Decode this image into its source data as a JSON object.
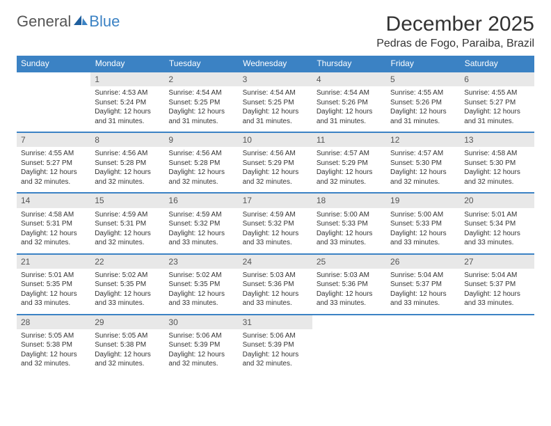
{
  "brand": {
    "part1": "General",
    "part2": "Blue"
  },
  "title": "December 2025",
  "location": "Pedras de Fogo, Paraiba, Brazil",
  "colors": {
    "header_bg": "#3b82c4",
    "header_text": "#ffffff",
    "daynum_bg": "#e8e8e8",
    "row_border": "#3b82c4",
    "text": "#333333",
    "brand_gray": "#555555",
    "brand_blue": "#3b82c4",
    "background": "#ffffff"
  },
  "typography": {
    "title_fontsize": 30,
    "location_fontsize": 16,
    "dayheader_fontsize": 12,
    "daynum_fontsize": 12,
    "body_fontsize": 10
  },
  "weekdays": [
    "Sunday",
    "Monday",
    "Tuesday",
    "Wednesday",
    "Thursday",
    "Friday",
    "Saturday"
  ],
  "weeks": [
    [
      null,
      {
        "n": "1",
        "sr": "4:53 AM",
        "ss": "5:24 PM",
        "dl": "12 hours and 31 minutes."
      },
      {
        "n": "2",
        "sr": "4:54 AM",
        "ss": "5:25 PM",
        "dl": "12 hours and 31 minutes."
      },
      {
        "n": "3",
        "sr": "4:54 AM",
        "ss": "5:25 PM",
        "dl": "12 hours and 31 minutes."
      },
      {
        "n": "4",
        "sr": "4:54 AM",
        "ss": "5:26 PM",
        "dl": "12 hours and 31 minutes."
      },
      {
        "n": "5",
        "sr": "4:55 AM",
        "ss": "5:26 PM",
        "dl": "12 hours and 31 minutes."
      },
      {
        "n": "6",
        "sr": "4:55 AM",
        "ss": "5:27 PM",
        "dl": "12 hours and 31 minutes."
      }
    ],
    [
      {
        "n": "7",
        "sr": "4:55 AM",
        "ss": "5:27 PM",
        "dl": "12 hours and 32 minutes."
      },
      {
        "n": "8",
        "sr": "4:56 AM",
        "ss": "5:28 PM",
        "dl": "12 hours and 32 minutes."
      },
      {
        "n": "9",
        "sr": "4:56 AM",
        "ss": "5:28 PM",
        "dl": "12 hours and 32 minutes."
      },
      {
        "n": "10",
        "sr": "4:56 AM",
        "ss": "5:29 PM",
        "dl": "12 hours and 32 minutes."
      },
      {
        "n": "11",
        "sr": "4:57 AM",
        "ss": "5:29 PM",
        "dl": "12 hours and 32 minutes."
      },
      {
        "n": "12",
        "sr": "4:57 AM",
        "ss": "5:30 PM",
        "dl": "12 hours and 32 minutes."
      },
      {
        "n": "13",
        "sr": "4:58 AM",
        "ss": "5:30 PM",
        "dl": "12 hours and 32 minutes."
      }
    ],
    [
      {
        "n": "14",
        "sr": "4:58 AM",
        "ss": "5:31 PM",
        "dl": "12 hours and 32 minutes."
      },
      {
        "n": "15",
        "sr": "4:59 AM",
        "ss": "5:31 PM",
        "dl": "12 hours and 32 minutes."
      },
      {
        "n": "16",
        "sr": "4:59 AM",
        "ss": "5:32 PM",
        "dl": "12 hours and 33 minutes."
      },
      {
        "n": "17",
        "sr": "4:59 AM",
        "ss": "5:32 PM",
        "dl": "12 hours and 33 minutes."
      },
      {
        "n": "18",
        "sr": "5:00 AM",
        "ss": "5:33 PM",
        "dl": "12 hours and 33 minutes."
      },
      {
        "n": "19",
        "sr": "5:00 AM",
        "ss": "5:33 PM",
        "dl": "12 hours and 33 minutes."
      },
      {
        "n": "20",
        "sr": "5:01 AM",
        "ss": "5:34 PM",
        "dl": "12 hours and 33 minutes."
      }
    ],
    [
      {
        "n": "21",
        "sr": "5:01 AM",
        "ss": "5:35 PM",
        "dl": "12 hours and 33 minutes."
      },
      {
        "n": "22",
        "sr": "5:02 AM",
        "ss": "5:35 PM",
        "dl": "12 hours and 33 minutes."
      },
      {
        "n": "23",
        "sr": "5:02 AM",
        "ss": "5:35 PM",
        "dl": "12 hours and 33 minutes."
      },
      {
        "n": "24",
        "sr": "5:03 AM",
        "ss": "5:36 PM",
        "dl": "12 hours and 33 minutes."
      },
      {
        "n": "25",
        "sr": "5:03 AM",
        "ss": "5:36 PM",
        "dl": "12 hours and 33 minutes."
      },
      {
        "n": "26",
        "sr": "5:04 AM",
        "ss": "5:37 PM",
        "dl": "12 hours and 33 minutes."
      },
      {
        "n": "27",
        "sr": "5:04 AM",
        "ss": "5:37 PM",
        "dl": "12 hours and 33 minutes."
      }
    ],
    [
      {
        "n": "28",
        "sr": "5:05 AM",
        "ss": "5:38 PM",
        "dl": "12 hours and 32 minutes."
      },
      {
        "n": "29",
        "sr": "5:05 AM",
        "ss": "5:38 PM",
        "dl": "12 hours and 32 minutes."
      },
      {
        "n": "30",
        "sr": "5:06 AM",
        "ss": "5:39 PM",
        "dl": "12 hours and 32 minutes."
      },
      {
        "n": "31",
        "sr": "5:06 AM",
        "ss": "5:39 PM",
        "dl": "12 hours and 32 minutes."
      },
      null,
      null,
      null
    ]
  ],
  "labels": {
    "sunrise": "Sunrise:",
    "sunset": "Sunset:",
    "daylight": "Daylight:"
  }
}
